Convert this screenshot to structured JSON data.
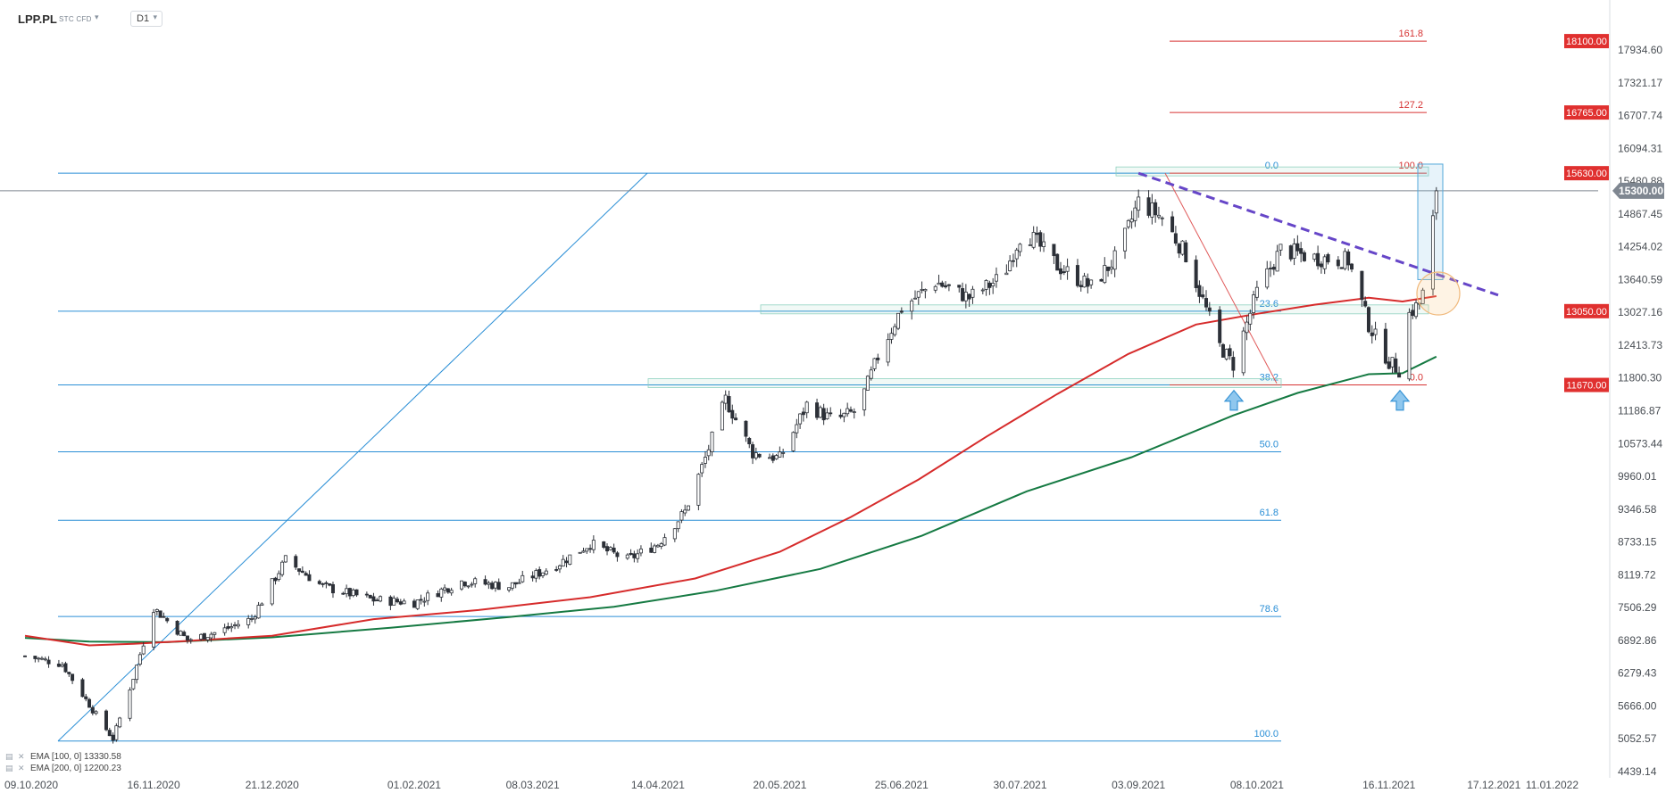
{
  "header": {
    "symbol": "LPP.PL",
    "instrument_type": "STC CFD",
    "instrument_dropdown_icon": "caret-down-icon",
    "timeframe": "D1",
    "timeframe_dropdown_icon": "caret-down-icon"
  },
  "legend": [
    {
      "icon": "indicator-settings-icon",
      "close_icon": "close-icon",
      "label": "EMA [100, 0]",
      "value": "13330.58",
      "color": "#d62b2b"
    },
    {
      "icon": "indicator-settings-icon",
      "close_icon": "close-icon",
      "label": "EMA [200, 0]",
      "value": "12200.23",
      "color": "#167a43"
    }
  ],
  "colors": {
    "fib_left": "#2b8fd6",
    "fib_right": "#d63333",
    "ema100": "#d62b2b",
    "ema200": "#167a43",
    "trendline": "#6646c8",
    "candle_up": "#ffffff",
    "candle_down": "#2d3138",
    "badge_red": "#e0302f",
    "current_price_badge": "#7f8791"
  },
  "chart_data": {
    "type": "candlestick",
    "x_ticks": [
      "09.10.2020",
      "16.11.2020",
      "21.12.2020",
      "01.02.2021",
      "08.03.2021",
      "14.04.2021",
      "20.05.2021",
      "25.06.2021",
      "30.07.2021",
      "03.09.2021",
      "08.10.2021",
      "16.11.2021",
      "17.12.2021",
      "11.01.2022"
    ],
    "x_tick_dates": [
      "2020-10-09",
      "2020-11-16",
      "2020-12-21",
      "2021-02-01",
      "2021-03-08",
      "2021-04-14",
      "2021-05-20",
      "2021-06-25",
      "2021-07-30",
      "2021-09-03",
      "2021-10-08",
      "2021-11-16",
      "2021-12-17",
      "2022-01-11"
    ],
    "y_ticks": [
      "17934.60",
      "17321.17",
      "16707.74",
      "16094.31",
      "15480.88",
      "14867.45",
      "14254.02",
      "13640.59",
      "13027.16",
      "12413.73",
      "11800.30",
      "11186.87",
      "10573.44",
      "9960.01",
      "9346.58",
      "8733.15",
      "8119.72",
      "7506.29",
      "6892.86",
      "6279.43",
      "5666.00",
      "5052.57",
      "4439.14"
    ],
    "ylim": [
      4439.14,
      17934.6
    ],
    "current_price": {
      "label": "15300.00",
      "value": 15300
    },
    "price_levels": [
      {
        "label": "18100.00",
        "value": 18100
      },
      {
        "label": "16765.00",
        "value": 16765
      },
      {
        "label": "15630.00",
        "value": 15630
      },
      {
        "label": "13050.00",
        "value": 13050
      },
      {
        "label": "11670.00",
        "value": 11670
      }
    ],
    "fib_retracement_left": {
      "levels": [
        {
          "label": "0.0",
          "value": 15630
        },
        {
          "label": "23.6",
          "value": 13050
        },
        {
          "label": "38.2",
          "value": 11670
        },
        {
          "label": "50.0",
          "value": 10420
        },
        {
          "label": "61.8",
          "value": 9140
        },
        {
          "label": "78.6",
          "value": 7340
        },
        {
          "label": "100.0",
          "value": 5010
        }
      ]
    },
    "fib_extension_right": {
      "levels": [
        {
          "label": "161.8",
          "value": 18100
        },
        {
          "label": "127.2",
          "value": 16765
        },
        {
          "label": "100.0",
          "value": 15630
        },
        {
          "label": "0.0",
          "value": 11670
        }
      ]
    },
    "trendline": [
      {
        "date": "2021-09-03",
        "value": 15630
      },
      {
        "date": "2022-01-11",
        "value": 13350
      }
    ],
    "ema100": [
      {
        "date": "2020-10-09",
        "value": 6980
      },
      {
        "date": "2020-10-28",
        "value": 6800
      },
      {
        "date": "2020-11-10",
        "value": 6830
      },
      {
        "date": "2020-11-25",
        "value": 6880
      },
      {
        "date": "2020-12-21",
        "value": 6980
      },
      {
        "date": "2021-01-20",
        "value": 7290
      },
      {
        "date": "2021-02-20",
        "value": 7460
      },
      {
        "date": "2021-03-25",
        "value": 7700
      },
      {
        "date": "2021-04-25",
        "value": 8050
      },
      {
        "date": "2021-05-20",
        "value": 8550
      },
      {
        "date": "2021-06-10",
        "value": 9200
      },
      {
        "date": "2021-06-30",
        "value": 9900
      },
      {
        "date": "2021-07-20",
        "value": 10700
      },
      {
        "date": "2021-08-10",
        "value": 11500
      },
      {
        "date": "2021-08-31",
        "value": 12250
      },
      {
        "date": "2021-09-20",
        "value": 12800
      },
      {
        "date": "2021-10-08",
        "value": 13000
      },
      {
        "date": "2021-10-25",
        "value": 13170
      },
      {
        "date": "2021-11-10",
        "value": 13300
      },
      {
        "date": "2021-11-20",
        "value": 13230
      },
      {
        "date": "2021-11-30",
        "value": 13330
      }
    ],
    "ema200": [
      {
        "date": "2020-10-09",
        "value": 6940
      },
      {
        "date": "2020-10-28",
        "value": 6870
      },
      {
        "date": "2020-11-20",
        "value": 6860
      },
      {
        "date": "2020-12-21",
        "value": 6950
      },
      {
        "date": "2021-01-25",
        "value": 7130
      },
      {
        "date": "2021-03-01",
        "value": 7330
      },
      {
        "date": "2021-04-01",
        "value": 7520
      },
      {
        "date": "2021-05-01",
        "value": 7820
      },
      {
        "date": "2021-06-01",
        "value": 8230
      },
      {
        "date": "2021-07-01",
        "value": 8850
      },
      {
        "date": "2021-08-01",
        "value": 9680
      },
      {
        "date": "2021-09-01",
        "value": 10320
      },
      {
        "date": "2021-10-01",
        "value": 11100
      },
      {
        "date": "2021-10-20",
        "value": 11520
      },
      {
        "date": "2021-11-10",
        "value": 11870
      },
      {
        "date": "2021-11-20",
        "value": 11890
      },
      {
        "date": "2021-11-30",
        "value": 12200
      }
    ],
    "candles": [
      {
        "date": "2020-10-09",
        "value": 6600
      },
      {
        "date": "2020-10-20",
        "value": 6450
      },
      {
        "date": "2020-10-30",
        "value": 5500
      },
      {
        "date": "2020-11-04",
        "value": 5050
      },
      {
        "date": "2020-11-10",
        "value": 6200
      },
      {
        "date": "2020-11-16",
        "value": 7500
      },
      {
        "date": "2020-11-26",
        "value": 6900
      },
      {
        "date": "2020-12-05",
        "value": 7050
      },
      {
        "date": "2020-12-15",
        "value": 7300
      },
      {
        "date": "2020-12-25",
        "value": 8400
      },
      {
        "date": "2021-01-05",
        "value": 7900
      },
      {
        "date": "2021-01-20",
        "value": 7650
      },
      {
        "date": "2021-02-01",
        "value": 7600
      },
      {
        "date": "2021-02-15",
        "value": 8000
      },
      {
        "date": "2021-03-01",
        "value": 7900
      },
      {
        "date": "2021-03-15",
        "value": 8300
      },
      {
        "date": "2021-03-25",
        "value": 8700
      },
      {
        "date": "2021-04-05",
        "value": 8400
      },
      {
        "date": "2021-04-14",
        "value": 8700
      },
      {
        "date": "2021-04-22",
        "value": 9300
      },
      {
        "date": "2021-04-28",
        "value": 10300
      },
      {
        "date": "2021-05-04",
        "value": 11400
      },
      {
        "date": "2021-05-12",
        "value": 10400
      },
      {
        "date": "2021-05-20",
        "value": 10300
      },
      {
        "date": "2021-05-28",
        "value": 11300
      },
      {
        "date": "2021-06-05",
        "value": 11000
      },
      {
        "date": "2021-06-12",
        "value": 11200
      },
      {
        "date": "2021-06-18",
        "value": 12200
      },
      {
        "date": "2021-06-25",
        "value": 13100
      },
      {
        "date": "2021-07-05",
        "value": 13600
      },
      {
        "date": "2021-07-15",
        "value": 13300
      },
      {
        "date": "2021-07-25",
        "value": 13700
      },
      {
        "date": "2021-07-31",
        "value": 14600
      },
      {
        "date": "2021-08-10",
        "value": 13900
      },
      {
        "date": "2021-08-20",
        "value": 13500
      },
      {
        "date": "2021-08-28",
        "value": 14100
      },
      {
        "date": "2021-09-03",
        "value": 15100
      },
      {
        "date": "2021-09-10",
        "value": 14800
      },
      {
        "date": "2021-09-17",
        "value": 14100
      },
      {
        "date": "2021-09-27",
        "value": 12400
      },
      {
        "date": "2021-10-01",
        "value": 12050
      },
      {
        "date": "2021-10-08",
        "value": 13400
      },
      {
        "date": "2021-10-15",
        "value": 14200
      },
      {
        "date": "2021-10-25",
        "value": 14050
      },
      {
        "date": "2021-11-04",
        "value": 14000
      },
      {
        "date": "2021-11-10",
        "value": 12800
      },
      {
        "date": "2021-11-16",
        "value": 12100
      },
      {
        "date": "2021-11-19",
        "value": 11950
      },
      {
        "date": "2021-11-22",
        "value": 13000
      },
      {
        "date": "2021-11-25",
        "value": 13200
      },
      {
        "date": "2021-11-27",
        "value": 13550
      },
      {
        "date": "2021-11-30",
        "value": 15300
      }
    ]
  }
}
